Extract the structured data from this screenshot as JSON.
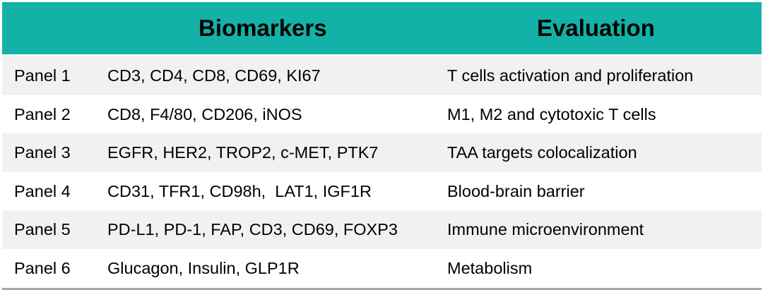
{
  "header": {
    "biomarkers": "Biomarkers",
    "evaluation": "Evaluation"
  },
  "rows": [
    {
      "panel": "Panel 1",
      "biomarkers": "CD3, CD4, CD8, CD69, KI67",
      "evaluation": "T cells activation and proliferation"
    },
    {
      "panel": "Panel 2",
      "biomarkers": "CD8, F4/80, CD206, iNOS",
      "evaluation": "M1, M2 and cytotoxic T cells"
    },
    {
      "panel": "Panel 3",
      "biomarkers": "EGFR, HER2, TROP2, c-MET, PTK7",
      "evaluation": "TAA targets colocalization"
    },
    {
      "panel": "Panel 4",
      "biomarkers": "CD31, TFR1, CD98h,  LAT1, IGF1R",
      "evaluation": "Blood-brain barrier"
    },
    {
      "panel": "Panel 5",
      "biomarkers": "PD-L1, PD-1, FAP, CD3, CD69, FOXP3",
      "evaluation": "Immune microenvironment"
    },
    {
      "panel": "Panel 6",
      "biomarkers": "Glucagon, Insulin, GLP1R",
      "evaluation": "Metabolism"
    }
  ],
  "colors": {
    "header_bg": "#13b1a7",
    "row_alt_bg": "#f1f1f1",
    "bottom_rule": "#a6a6a6"
  }
}
